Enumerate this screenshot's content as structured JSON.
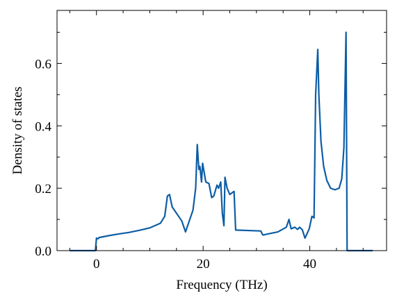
{
  "chart_data": {
    "type": "line",
    "xlabel": "Frequency (THz)",
    "ylabel": "Density of states",
    "x": [
      -5,
      -0.2,
      0,
      0.3,
      0.5,
      2,
      4,
      6,
      8,
      10,
      12,
      12.8,
      13.3,
      13.7,
      14.2,
      15,
      16,
      16.7,
      17.3,
      18.1,
      18.6,
      18.9,
      19.2,
      19.4,
      19.7,
      19.9,
      20.5,
      21.1,
      21.6,
      22,
      22.6,
      22.9,
      23.3,
      23.6,
      23.9,
      24.1,
      24.5,
      25,
      25.8,
      26.1,
      30.8,
      31.2,
      34,
      35.6,
      36.1,
      36.5,
      37.2,
      37.7,
      38.1,
      38.6,
      39.1,
      39.9,
      40.4,
      40.8,
      41.1,
      41.5,
      41.7,
      42.1,
      42.6,
      43.2,
      43.9,
      44.7,
      45.5,
      46,
      46.4,
      46.8,
      47,
      51.8
    ],
    "series": [
      {
        "color": "#0c5da5",
        "values": [
          0,
          0,
          0.04,
          0.038,
          0.042,
          0.047,
          0.053,
          0.058,
          0.065,
          0.073,
          0.088,
          0.11,
          0.175,
          0.18,
          0.14,
          0.12,
          0.095,
          0.06,
          0.09,
          0.13,
          0.2,
          0.34,
          0.26,
          0.27,
          0.22,
          0.28,
          0.22,
          0.215,
          0.17,
          0.175,
          0.21,
          0.2,
          0.22,
          0.12,
          0.08,
          0.235,
          0.2,
          0.18,
          0.19,
          0.066,
          0.063,
          0.05,
          0.06,
          0.075,
          0.1,
          0.07,
          0.075,
          0.068,
          0.075,
          0.067,
          0.04,
          0.07,
          0.11,
          0.105,
          0.5,
          0.645,
          0.5,
          0.35,
          0.27,
          0.225,
          0.2,
          0.195,
          0.2,
          0.23,
          0.33,
          0.7,
          0,
          0
        ]
      }
    ],
    "xlim": [
      -7.4,
      54.4
    ],
    "ylim": [
      0,
      0.77
    ],
    "xticks": [
      0,
      20,
      40
    ],
    "yticks": [
      {
        "value": 0,
        "label": "0.0"
      },
      0.2,
      0.4,
      0.6
    ],
    "xminorticks": [
      -5,
      5,
      10,
      15,
      25,
      30,
      35,
      45,
      50
    ],
    "yminorticks": [
      0.1,
      0.3,
      0.5,
      0.7
    ]
  }
}
